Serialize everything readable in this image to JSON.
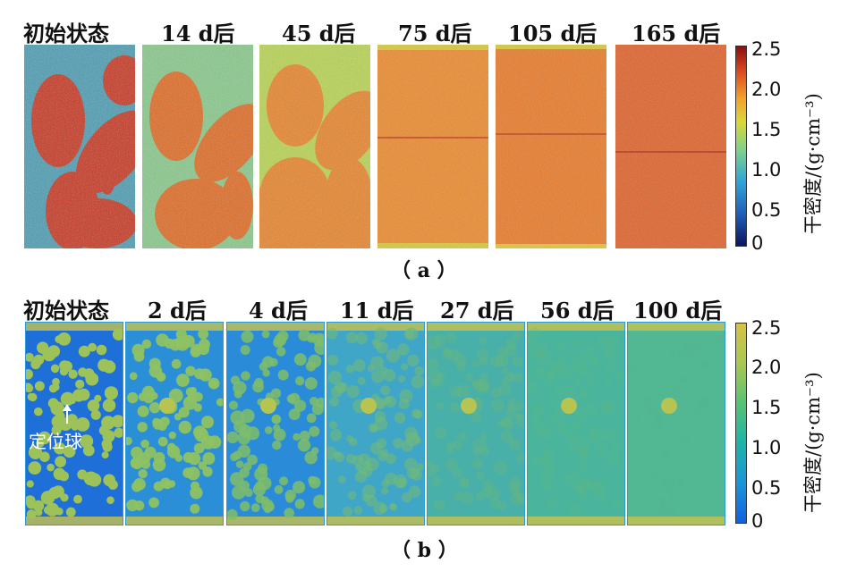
{
  "figure_a": {
    "labels": [
      "初始状态",
      "14 d后",
      "45 d后",
      "75 d后",
      "105 d后",
      "165 d后"
    ],
    "caption": "（ a ）",
    "colorbar_ticks": [
      "2.5",
      "2.0",
      "1.5",
      "1.0",
      "0.5",
      "0"
    ],
    "colorbar_title": "干密度/(g·cm⁻³)",
    "colormap": [
      "#0a1560",
      "#1f5fb8",
      "#2ea5d8",
      "#7fd18b",
      "#d8d83a",
      "#f2a22c",
      "#d9461e",
      "#8a1010"
    ]
  },
  "figure_b": {
    "labels": [
      "初始状态",
      "2 d后",
      "4 d后",
      "11 d后",
      "27 d后",
      "56 d后",
      "100 d后"
    ],
    "caption": "（ b ）",
    "colorbar_ticks": [
      "2.5",
      "2.0",
      "1.5",
      "1.0",
      "0.5",
      "0"
    ],
    "colorbar_title": "干密度/(g·cm⁻³)",
    "colormap": [
      "#1260e0",
      "#1a96d8",
      "#1eb4a8",
      "#58c274",
      "#a8c853",
      "#d8c245"
    ],
    "marker_label": "定位球"
  }
}
